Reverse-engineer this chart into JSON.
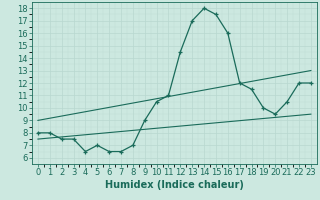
{
  "xlabel": "Humidex (Indice chaleur)",
  "bg_color": "#cce8e0",
  "line_color": "#1a6b5a",
  "grid_color": "#b8d8d0",
  "xlim": [
    -0.5,
    23.5
  ],
  "ylim": [
    5.5,
    18.5
  ],
  "yticks": [
    6,
    7,
    8,
    9,
    10,
    11,
    12,
    13,
    14,
    15,
    16,
    17,
    18
  ],
  "xticks": [
    0,
    1,
    2,
    3,
    4,
    5,
    6,
    7,
    8,
    9,
    10,
    11,
    12,
    13,
    14,
    15,
    16,
    17,
    18,
    19,
    20,
    21,
    22,
    23
  ],
  "main_x": [
    0,
    1,
    2,
    3,
    4,
    5,
    6,
    7,
    8,
    9,
    10,
    11,
    12,
    13,
    14,
    15,
    16,
    17,
    18,
    19,
    20,
    21,
    22,
    23
  ],
  "main_y": [
    8,
    8,
    7.5,
    7.5,
    6.5,
    7,
    6.5,
    6.5,
    7,
    9.0,
    10.5,
    11.0,
    14.5,
    17.0,
    18.0,
    17.5,
    16.0,
    12.0,
    11.5,
    10.0,
    9.5,
    10.5,
    12.0,
    12.0
  ],
  "upper_line_x": [
    0,
    23
  ],
  "upper_line_y": [
    9.0,
    13.0
  ],
  "lower_line_x": [
    0,
    23
  ],
  "lower_line_y": [
    7.5,
    9.5
  ],
  "font_size": 6.5,
  "tick_font_size": 6.0,
  "xlabel_fontsize": 7.0
}
